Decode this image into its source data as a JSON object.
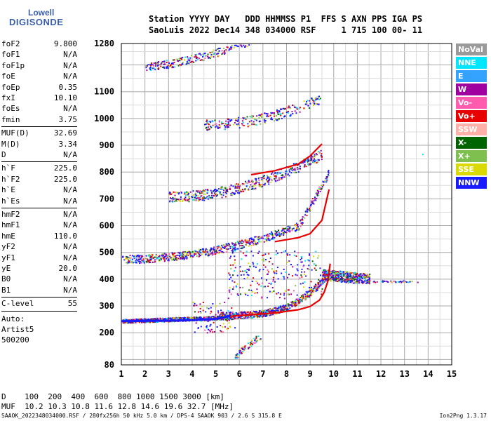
{
  "logo": {
    "line1": "Lowell",
    "line2": "DIGISONDE"
  },
  "header": {
    "line1": "Station YYYY DAY   DDD HHMMSS P1  FFS S AXN PPS IGA PS",
    "line2": "SaoLuis 2022 Dec14 348 034000 RSF     1 715 100 00- 11"
  },
  "params": {
    "group1": [
      {
        "key": "foF2",
        "val": "9.800"
      },
      {
        "key": "foF1",
        "val": "N/A"
      },
      {
        "key": "foF1p",
        "val": "N/A"
      },
      {
        "key": "foE",
        "val": "N/A"
      },
      {
        "key": "foEp",
        "val": "0.35"
      },
      {
        "key": "fxI",
        "val": "10.10"
      },
      {
        "key": "foEs",
        "val": "N/A"
      },
      {
        "key": "fmin",
        "val": "3.75"
      }
    ],
    "group2": [
      {
        "key": "MUF(D)",
        "val": "32.69"
      },
      {
        "key": "M(D)",
        "val": "3.34"
      },
      {
        "key": "D",
        "val": "N/A"
      }
    ],
    "group3": [
      {
        "key": "h`F",
        "val": "225.0"
      },
      {
        "key": "h`F2",
        "val": "225.0"
      },
      {
        "key": "h`E",
        "val": "N/A"
      },
      {
        "key": "h`Es",
        "val": "N/A"
      }
    ],
    "group4": [
      {
        "key": "hmF2",
        "val": "N/A"
      },
      {
        "key": "hmF1",
        "val": "N/A"
      },
      {
        "key": "hmE",
        "val": "110.0"
      },
      {
        "key": "yF2",
        "val": "N/A"
      },
      {
        "key": "yF1",
        "val": "N/A"
      },
      {
        "key": "yE",
        "val": "20.0"
      },
      {
        "key": "B0",
        "val": "N/A"
      },
      {
        "key": "B1",
        "val": "N/A"
      }
    ],
    "group5": [
      {
        "key": "C-level",
        "val": "55"
      }
    ],
    "auto": {
      "line1": "Auto:",
      "line2": "Artist5",
      "line3": "500200"
    }
  },
  "legend": [
    {
      "label": "NoVal",
      "color": "#9a9a9a"
    },
    {
      "label": "NNE",
      "color": "#00e6ff"
    },
    {
      "label": "E",
      "color": "#33a3ff"
    },
    {
      "label": "W",
      "color": "#a000a0"
    },
    {
      "label": "Vo-",
      "color": "#ff5cb0"
    },
    {
      "label": "Vo+",
      "color": "#e60000"
    },
    {
      "label": "SSW",
      "color": "#ffb0a8"
    },
    {
      "label": "X-",
      "color": "#006400"
    },
    {
      "label": "X+",
      "color": "#7fbf4f"
    },
    {
      "label": "SSE",
      "color": "#dada00"
    },
    {
      "label": "NNW",
      "color": "#1a1aff"
    }
  ],
  "chart_data": {
    "type": "scatter",
    "xlabel": "",
    "ylabel": "",
    "xlim": [
      1,
      15
    ],
    "ylim": [
      80,
      1280
    ],
    "x_ticks": [
      "1",
      "2",
      "3",
      "4",
      "5",
      "6",
      "7",
      "8",
      "9",
      "10",
      "11",
      "12",
      "13",
      "14",
      "15"
    ],
    "y_ticks": [
      "80",
      "200",
      "300",
      "400",
      "500",
      "600",
      "700",
      "800",
      "900",
      "1000",
      "1100",
      "1280"
    ],
    "traces": [
      {
        "name": "Vo+",
        "points": [
          [
            5.7,
            262
          ],
          [
            6.5,
            267
          ],
          [
            7.5,
            274
          ],
          [
            8.5,
            286
          ],
          [
            9.0,
            298
          ],
          [
            9.4,
            322
          ],
          [
            9.6,
            352
          ],
          [
            9.75,
            392
          ],
          [
            9.85,
            458
          ]
        ]
      },
      {
        "name": "Vo+",
        "points": [
          [
            7.5,
            540
          ],
          [
            8.5,
            555
          ],
          [
            9.0,
            570
          ],
          [
            9.5,
            620
          ],
          [
            9.8,
            735
          ]
        ]
      },
      {
        "name": "Vo+",
        "points": [
          [
            6.5,
            790
          ],
          [
            7.5,
            805
          ],
          [
            8.5,
            830
          ],
          [
            9.0,
            860
          ],
          [
            9.5,
            905
          ]
        ]
      },
      {
        "name": "NNW",
        "points": [
          [
            1.0,
            243
          ],
          [
            2.0,
            244
          ],
          [
            3.0,
            245
          ],
          [
            4.0,
            247
          ],
          [
            5.0,
            252
          ],
          [
            5.6,
            262
          ]
        ]
      }
    ]
  },
  "footer": {
    "d_row": "D    100  200  400  600  800 1000 1500 3000 [km]",
    "muf_row": "MUF  10.2 10.3 10.8 11.6 12.8 14.6 19.6 32.7 [MHz]",
    "line": "SAAOK_2022348034000.RSF / 280fx256h 50 kHz 5.0 km / DPS-4 SAAOK 903 / 2.6 S 315.8 E",
    "version": "Ion2Png 1.3.17"
  }
}
